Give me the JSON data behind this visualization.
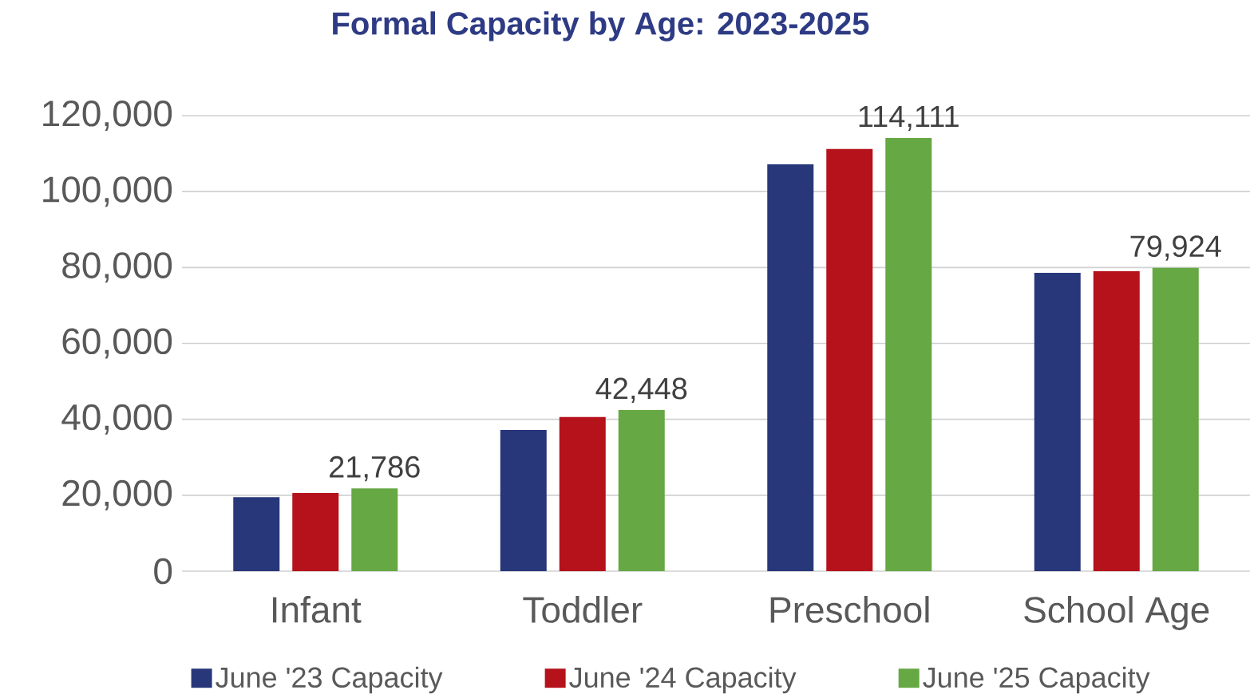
{
  "chart_data": {
    "type": "bar",
    "title": "Formal Capacity by Age: 2023-2025",
    "categories": [
      "Infant",
      "Toddler",
      "Preschool",
      "School Age"
    ],
    "series": [
      {
        "name": "June '23 Capacity",
        "color": "#283779",
        "values": [
          19500,
          37200,
          107200,
          78600
        ]
      },
      {
        "name": "June '24 Capacity",
        "color": "#b5121b",
        "values": [
          20600,
          40600,
          111200,
          79000
        ]
      },
      {
        "name": "June '25 Capacity",
        "color": "#66a844",
        "values": [
          21786,
          42448,
          114111,
          79924
        ],
        "value_labels": [
          "21,786",
          "42,448",
          "114,111",
          "79,924"
        ]
      }
    ],
    "ylim": [
      0,
      120000
    ],
    "yticks": [
      {
        "value": 0,
        "label": "0"
      },
      {
        "value": 20000,
        "label": "20,000"
      },
      {
        "value": 40000,
        "label": "40,000"
      },
      {
        "value": 60000,
        "label": "60,000"
      },
      {
        "value": 80000,
        "label": "80,000"
      },
      {
        "value": 100000,
        "label": "100,000"
      },
      {
        "value": 120000,
        "label": "120,000"
      }
    ],
    "grid": "y",
    "legend": "bottom"
  }
}
